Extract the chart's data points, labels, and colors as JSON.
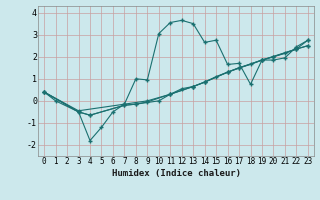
{
  "xlabel": "Humidex (Indice chaleur)",
  "bg_color": "#cce8ec",
  "grid_color": "#b0d4d8",
  "line_color": "#1a7070",
  "xlim": [
    -0.5,
    23.5
  ],
  "ylim": [
    -2.5,
    4.3
  ],
  "yticks": [
    -2,
    -1,
    0,
    1,
    2,
    3,
    4
  ],
  "xticks": [
    0,
    1,
    2,
    3,
    4,
    5,
    6,
    7,
    8,
    9,
    10,
    11,
    12,
    13,
    14,
    15,
    16,
    17,
    18,
    19,
    20,
    21,
    22,
    23
  ],
  "series": [
    {
      "x": [
        0,
        1,
        3,
        4,
        5,
        6,
        7,
        8,
        9,
        10,
        11,
        12,
        13,
        14,
        15,
        16,
        17,
        18,
        19,
        20,
        21,
        22,
        23
      ],
      "y": [
        0.4,
        0.0,
        -0.5,
        -1.8,
        -1.2,
        -0.5,
        -0.15,
        1.0,
        0.95,
        3.05,
        3.55,
        3.65,
        3.5,
        2.65,
        2.75,
        1.65,
        1.7,
        0.75,
        1.85,
        1.85,
        1.95,
        2.45,
        2.75
      ]
    },
    {
      "x": [
        0,
        3,
        4,
        7,
        8,
        9,
        11,
        13,
        14,
        16,
        17,
        19,
        20,
        22,
        23
      ],
      "y": [
        0.4,
        -0.5,
        -0.65,
        -0.2,
        -0.15,
        -0.05,
        0.3,
        0.65,
        0.85,
        1.3,
        1.5,
        1.85,
        2.0,
        2.35,
        2.5
      ]
    },
    {
      "x": [
        0,
        3,
        7,
        9,
        11,
        13,
        14,
        16,
        19,
        22,
        23
      ],
      "y": [
        0.4,
        -0.45,
        -0.15,
        0.0,
        0.3,
        0.65,
        0.85,
        1.3,
        1.85,
        2.35,
        2.75
      ]
    },
    {
      "x": [
        0,
        3,
        4,
        7,
        8,
        10,
        11,
        12,
        13,
        14,
        15,
        16,
        17,
        18,
        19,
        20,
        21,
        22,
        23
      ],
      "y": [
        0.4,
        -0.5,
        -0.65,
        -0.2,
        -0.15,
        0.0,
        0.3,
        0.55,
        0.65,
        0.85,
        1.1,
        1.3,
        1.5,
        1.65,
        1.85,
        2.0,
        2.15,
        2.35,
        2.5
      ]
    }
  ]
}
